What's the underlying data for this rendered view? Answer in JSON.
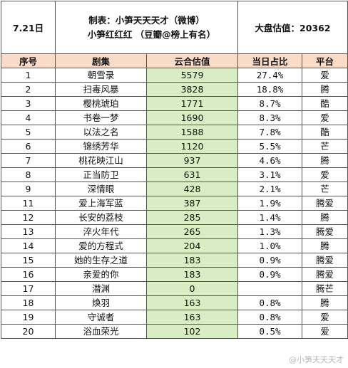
{
  "header": {
    "date": "7.21日",
    "maker_line1": "制表：小笋天天天才（微博）",
    "maker_line2": "小笋红红红  （豆瓣@榜上有名）",
    "total": "大盘估值：20362"
  },
  "columns": [
    "序号",
    "剧集",
    "云合估值",
    "当日占比",
    "平台"
  ],
  "rows": [
    {
      "rank": "1",
      "title": "朝雪录",
      "value": "5579",
      "share": "27.4%",
      "platform": "爱"
    },
    {
      "rank": "2",
      "title": "扫毒风暴",
      "value": "3828",
      "share": "18.8%",
      "platform": "腾"
    },
    {
      "rank": "3",
      "title": "樱桃琥珀",
      "value": "1771",
      "share": "8.7%",
      "platform": "酷"
    },
    {
      "rank": "4",
      "title": "书卷一梦",
      "value": "1690",
      "share": "8.3%",
      "platform": "爱"
    },
    {
      "rank": "5",
      "title": "以法之名",
      "value": "1588",
      "share": "7.8%",
      "platform": "酷"
    },
    {
      "rank": "6",
      "title": "锦绣芳华",
      "value": "1120",
      "share": "5.5%",
      "platform": "芒"
    },
    {
      "rank": "7",
      "title": "桃花映江山",
      "value": "937",
      "share": "4.6%",
      "platform": "腾"
    },
    {
      "rank": "8",
      "title": "正当防卫",
      "value": "631",
      "share": "3.1%",
      "platform": "爱"
    },
    {
      "rank": "9",
      "title": "深情眼",
      "value": "428",
      "share": "2.1%",
      "platform": "芒"
    },
    {
      "rank": "11",
      "title": "爱上海军蓝",
      "value": "387",
      "share": "1.9%",
      "platform": "腾爱"
    },
    {
      "rank": "12",
      "title": "长安的荔枝",
      "value": "285",
      "share": "1.4%",
      "platform": "腾"
    },
    {
      "rank": "13",
      "title": "淬火年代",
      "value": "265",
      "share": "1.3%",
      "platform": "腾爱"
    },
    {
      "rank": "14",
      "title": "爱的方程式",
      "value": "204",
      "share": "1.0%",
      "platform": "腾"
    },
    {
      "rank": "15",
      "title": "她的生存之道",
      "value": "183",
      "share": "0.9%",
      "platform": "腾爱"
    },
    {
      "rank": "16",
      "title": "亲爱的你",
      "value": "183",
      "share": "0.9%",
      "platform": "腾爱"
    },
    {
      "rank": "17",
      "title": "潜渊",
      "value": "0",
      "share": "",
      "platform": "腾芒"
    },
    {
      "rank": "18",
      "title": "焕羽",
      "value": "163",
      "share": "0.8%",
      "platform": "腾"
    },
    {
      "rank": "19",
      "title": "守诚者",
      "value": "163",
      "share": "0.8%",
      "platform": "爱"
    },
    {
      "rank": "20",
      "title": "浴血荣光",
      "value": "102",
      "share": "0.5%",
      "platform": "爱"
    }
  ],
  "watermark": "@小笋天天天才"
}
